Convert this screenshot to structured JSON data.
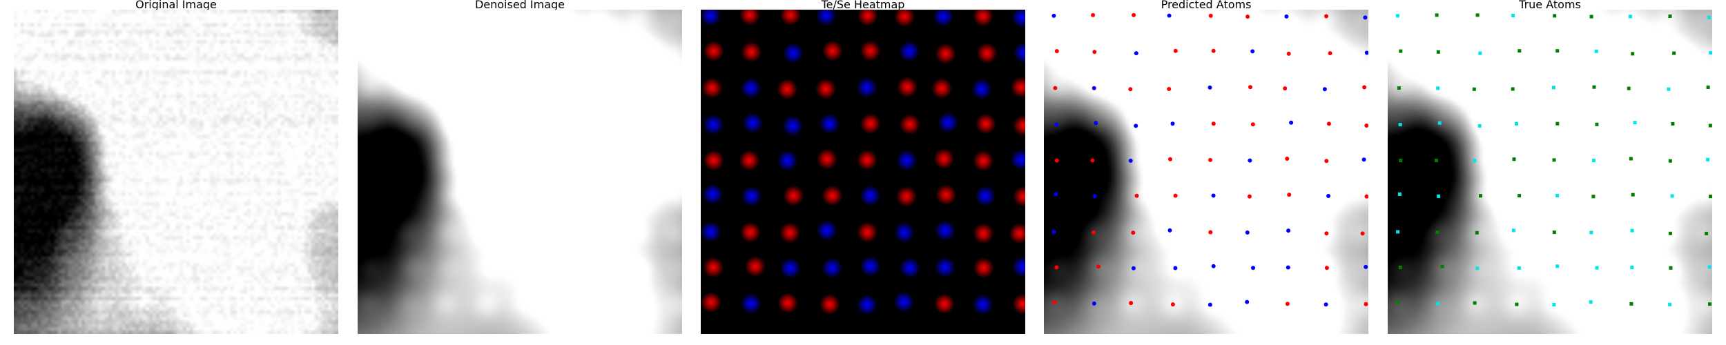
{
  "figure": {
    "panels": [
      {
        "key": "original",
        "title": "Original Image"
      },
      {
        "key": "denoised",
        "title": "Denoised Image"
      },
      {
        "key": "heatmap",
        "title": "Te/Se Heatmap"
      },
      {
        "key": "predicted",
        "title": "Predicted Atoms"
      },
      {
        "key": "true",
        "title": "True Atoms"
      }
    ],
    "colors": {
      "te": "#ff0000",
      "se": "#0000ff",
      "true_te": "#008000",
      "true_se": "#00e5e5",
      "heatmap_background": "#000000"
    },
    "lattice": {
      "columns": 9,
      "rows": 9
    }
  }
}
